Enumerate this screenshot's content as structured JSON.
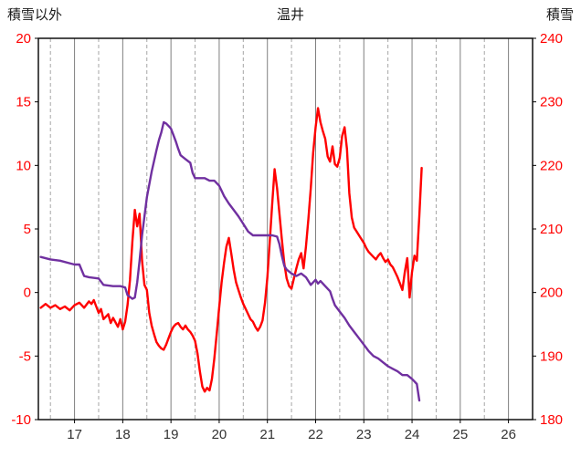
{
  "header": {
    "left_axis_title": "積雪以外",
    "chart_title": "温井",
    "right_axis_title": "積雪"
  },
  "chart_data": {
    "type": "line",
    "title": "温井",
    "x_axis": {
      "min": 16.25,
      "max": 26.5,
      "tick_values": [
        17,
        18,
        19,
        20,
        21,
        22,
        23,
        24,
        25,
        26
      ],
      "tick_labels": [
        "17",
        "18",
        "19",
        "20",
        "21",
        "22",
        "23",
        "24",
        "25",
        "26"
      ],
      "minor_grid_values": [
        16.5,
        17.5,
        18.5,
        19.5,
        20.5,
        21.5,
        22.5,
        23.5,
        24.5,
        25.5
      ],
      "label_color": "#333333"
    },
    "left_axis": {
      "title": "積雪以外",
      "min": -10,
      "max": 20,
      "tick_values": [
        20,
        15,
        10,
        5,
        0,
        -5,
        -10
      ],
      "tick_labels": [
        "20",
        "15",
        "10",
        "5",
        "0",
        "-5",
        "-10"
      ],
      "label_color": "#ff0000"
    },
    "right_axis": {
      "title": "積雪",
      "min": 180,
      "max": 240,
      "tick_values": [
        240,
        230,
        220,
        210,
        200,
        190,
        180
      ],
      "tick_labels": [
        "240",
        "230",
        "220",
        "210",
        "200",
        "190",
        "180"
      ],
      "label_color": "#ff0000"
    },
    "grid": {
      "major_color": "#7f7f7f",
      "minor_color": "#a6a6a6",
      "border_color": "#000000",
      "show_horizontal": false
    },
    "series": [
      {
        "name": "積雪以外",
        "axis": "left",
        "color": "#ff0000",
        "width": 2.4,
        "points": [
          [
            16.3,
            -1.2
          ],
          [
            16.4,
            -0.9
          ],
          [
            16.5,
            -1.2
          ],
          [
            16.6,
            -1.0
          ],
          [
            16.7,
            -1.3
          ],
          [
            16.8,
            -1.1
          ],
          [
            16.9,
            -1.4
          ],
          [
            17.0,
            -1.0
          ],
          [
            17.1,
            -0.8
          ],
          [
            17.2,
            -1.2
          ],
          [
            17.3,
            -0.7
          ],
          [
            17.35,
            -0.9
          ],
          [
            17.4,
            -0.6
          ],
          [
            17.5,
            -1.6
          ],
          [
            17.55,
            -1.3
          ],
          [
            17.6,
            -2.1
          ],
          [
            17.7,
            -1.7
          ],
          [
            17.75,
            -2.4
          ],
          [
            17.8,
            -2.0
          ],
          [
            17.9,
            -2.7
          ],
          [
            17.95,
            -2.1
          ],
          [
            18.0,
            -2.9
          ],
          [
            18.05,
            -2.3
          ],
          [
            18.1,
            -1.0
          ],
          [
            18.15,
            1.0
          ],
          [
            18.2,
            4.0
          ],
          [
            18.25,
            6.5
          ],
          [
            18.3,
            5.2
          ],
          [
            18.35,
            6.2
          ],
          [
            18.4,
            2.5
          ],
          [
            18.45,
            0.6
          ],
          [
            18.5,
            0.2
          ],
          [
            18.55,
            -1.6
          ],
          [
            18.6,
            -2.6
          ],
          [
            18.65,
            -3.3
          ],
          [
            18.7,
            -3.9
          ],
          [
            18.75,
            -4.2
          ],
          [
            18.8,
            -4.4
          ],
          [
            18.85,
            -4.5
          ],
          [
            18.9,
            -4.1
          ],
          [
            18.95,
            -3.6
          ],
          [
            19.0,
            -3.1
          ],
          [
            19.05,
            -2.7
          ],
          [
            19.1,
            -2.5
          ],
          [
            19.15,
            -2.4
          ],
          [
            19.2,
            -2.7
          ],
          [
            19.25,
            -2.9
          ],
          [
            19.3,
            -2.6
          ],
          [
            19.35,
            -2.9
          ],
          [
            19.4,
            -3.1
          ],
          [
            19.45,
            -3.4
          ],
          [
            19.5,
            -3.8
          ],
          [
            19.55,
            -4.8
          ],
          [
            19.6,
            -6.2
          ],
          [
            19.65,
            -7.4
          ],
          [
            19.7,
            -7.8
          ],
          [
            19.75,
            -7.5
          ],
          [
            19.8,
            -7.7
          ],
          [
            19.85,
            -6.8
          ],
          [
            19.9,
            -5.2
          ],
          [
            19.95,
            -3.2
          ],
          [
            20.0,
            -1.2
          ],
          [
            20.05,
            0.8
          ],
          [
            20.1,
            2.3
          ],
          [
            20.15,
            3.6
          ],
          [
            20.2,
            4.3
          ],
          [
            20.25,
            3.1
          ],
          [
            20.3,
            1.8
          ],
          [
            20.35,
            0.8
          ],
          [
            20.4,
            0.2
          ],
          [
            20.45,
            -0.4
          ],
          [
            20.5,
            -0.9
          ],
          [
            20.55,
            -1.3
          ],
          [
            20.6,
            -1.7
          ],
          [
            20.65,
            -2.1
          ],
          [
            20.7,
            -2.3
          ],
          [
            20.75,
            -2.7
          ],
          [
            20.8,
            -3.0
          ],
          [
            20.85,
            -2.7
          ],
          [
            20.9,
            -2.2
          ],
          [
            20.95,
            -0.8
          ],
          [
            21.0,
            1.2
          ],
          [
            21.05,
            4.0
          ],
          [
            21.1,
            7.0
          ],
          [
            21.15,
            9.7
          ],
          [
            21.2,
            8.2
          ],
          [
            21.25,
            6.2
          ],
          [
            21.3,
            4.2
          ],
          [
            21.35,
            2.3
          ],
          [
            21.4,
            1.1
          ],
          [
            21.45,
            0.5
          ],
          [
            21.5,
            0.3
          ],
          [
            21.55,
            1.1
          ],
          [
            21.6,
            1.9
          ],
          [
            21.65,
            2.6
          ],
          [
            21.7,
            3.1
          ],
          [
            21.75,
            1.9
          ],
          [
            21.8,
            3.6
          ],
          [
            21.85,
            5.8
          ],
          [
            21.9,
            8.2
          ],
          [
            21.95,
            11.0
          ],
          [
            22.0,
            13.0
          ],
          [
            22.05,
            14.5
          ],
          [
            22.1,
            13.4
          ],
          [
            22.15,
            12.7
          ],
          [
            22.2,
            12.1
          ],
          [
            22.25,
            10.7
          ],
          [
            22.3,
            10.3
          ],
          [
            22.35,
            11.5
          ],
          [
            22.4,
            10.1
          ],
          [
            22.45,
            9.9
          ],
          [
            22.5,
            10.6
          ],
          [
            22.55,
            12.3
          ],
          [
            22.6,
            13.0
          ],
          [
            22.65,
            11.3
          ],
          [
            22.7,
            7.8
          ],
          [
            22.75,
            5.9
          ],
          [
            22.8,
            5.1
          ],
          [
            22.85,
            4.8
          ],
          [
            22.9,
            4.5
          ],
          [
            22.95,
            4.2
          ],
          [
            23.0,
            3.9
          ],
          [
            23.05,
            3.5
          ],
          [
            23.1,
            3.2
          ],
          [
            23.15,
            3.0
          ],
          [
            23.2,
            2.8
          ],
          [
            23.25,
            2.6
          ],
          [
            23.3,
            2.9
          ],
          [
            23.35,
            3.1
          ],
          [
            23.4,
            2.7
          ],
          [
            23.45,
            2.4
          ],
          [
            23.5,
            2.6
          ],
          [
            23.55,
            2.2
          ],
          [
            23.6,
            2.0
          ],
          [
            23.65,
            1.6
          ],
          [
            23.7,
            1.2
          ],
          [
            23.75,
            0.7
          ],
          [
            23.8,
            0.2
          ],
          [
            23.85,
            1.6
          ],
          [
            23.9,
            2.7
          ],
          [
            23.95,
            -0.4
          ],
          [
            24.0,
            1.6
          ],
          [
            24.05,
            2.9
          ],
          [
            24.1,
            2.5
          ],
          [
            24.15,
            6.0
          ],
          [
            24.2,
            9.8
          ]
        ]
      },
      {
        "name": "積雪",
        "axis": "right",
        "color": "#7030a0",
        "width": 2.4,
        "points": [
          [
            16.3,
            205.6
          ],
          [
            16.5,
            205.2
          ],
          [
            16.7,
            205.0
          ],
          [
            16.9,
            204.6
          ],
          [
            17.0,
            204.4
          ],
          [
            17.1,
            204.4
          ],
          [
            17.2,
            202.6
          ],
          [
            17.3,
            202.4
          ],
          [
            17.5,
            202.2
          ],
          [
            17.6,
            201.2
          ],
          [
            17.8,
            201.0
          ],
          [
            17.95,
            201.0
          ],
          [
            18.05,
            200.8
          ],
          [
            18.1,
            199.6
          ],
          [
            18.2,
            199.0
          ],
          [
            18.25,
            199.2
          ],
          [
            18.3,
            201.6
          ],
          [
            18.35,
            205.0
          ],
          [
            18.4,
            209.0
          ],
          [
            18.5,
            215.0
          ],
          [
            18.6,
            219.0
          ],
          [
            18.7,
            222.4
          ],
          [
            18.75,
            224.0
          ],
          [
            18.8,
            225.2
          ],
          [
            18.85,
            226.8
          ],
          [
            18.9,
            226.6
          ],
          [
            18.95,
            226.2
          ],
          [
            19.0,
            225.8
          ],
          [
            19.05,
            224.8
          ],
          [
            19.1,
            223.8
          ],
          [
            19.15,
            222.6
          ],
          [
            19.2,
            221.6
          ],
          [
            19.3,
            221.0
          ],
          [
            19.4,
            220.4
          ],
          [
            19.45,
            218.8
          ],
          [
            19.5,
            218.0
          ],
          [
            19.6,
            218.0
          ],
          [
            19.7,
            218.0
          ],
          [
            19.8,
            217.6
          ],
          [
            19.9,
            217.6
          ],
          [
            20.0,
            216.8
          ],
          [
            20.05,
            216.0
          ],
          [
            20.1,
            215.2
          ],
          [
            20.2,
            214.0
          ],
          [
            20.3,
            213.0
          ],
          [
            20.4,
            212.0
          ],
          [
            20.5,
            210.8
          ],
          [
            20.6,
            209.6
          ],
          [
            20.7,
            209.0
          ],
          [
            20.8,
            209.0
          ],
          [
            20.9,
            209.0
          ],
          [
            21.0,
            209.0
          ],
          [
            21.1,
            209.0
          ],
          [
            21.2,
            208.8
          ],
          [
            21.25,
            207.6
          ],
          [
            21.3,
            205.8
          ],
          [
            21.35,
            204.2
          ],
          [
            21.4,
            203.6
          ],
          [
            21.5,
            203.0
          ],
          [
            21.6,
            202.6
          ],
          [
            21.7,
            203.0
          ],
          [
            21.8,
            202.4
          ],
          [
            21.9,
            201.2
          ],
          [
            22.0,
            202.0
          ],
          [
            22.05,
            201.4
          ],
          [
            22.1,
            201.8
          ],
          [
            22.2,
            201.0
          ],
          [
            22.3,
            200.2
          ],
          [
            22.35,
            199.0
          ],
          [
            22.4,
            198.0
          ],
          [
            22.5,
            197.0
          ],
          [
            22.6,
            196.0
          ],
          [
            22.7,
            194.8
          ],
          [
            22.8,
            193.8
          ],
          [
            22.9,
            192.8
          ],
          [
            23.0,
            191.8
          ],
          [
            23.1,
            190.8
          ],
          [
            23.2,
            190.0
          ],
          [
            23.3,
            189.6
          ],
          [
            23.4,
            189.0
          ],
          [
            23.5,
            188.4
          ],
          [
            23.6,
            188.0
          ],
          [
            23.7,
            187.6
          ],
          [
            23.8,
            187.0
          ],
          [
            23.9,
            187.0
          ],
          [
            24.0,
            186.4
          ],
          [
            24.05,
            186.0
          ],
          [
            24.1,
            185.6
          ],
          [
            24.15,
            183.0
          ]
        ]
      }
    ]
  }
}
